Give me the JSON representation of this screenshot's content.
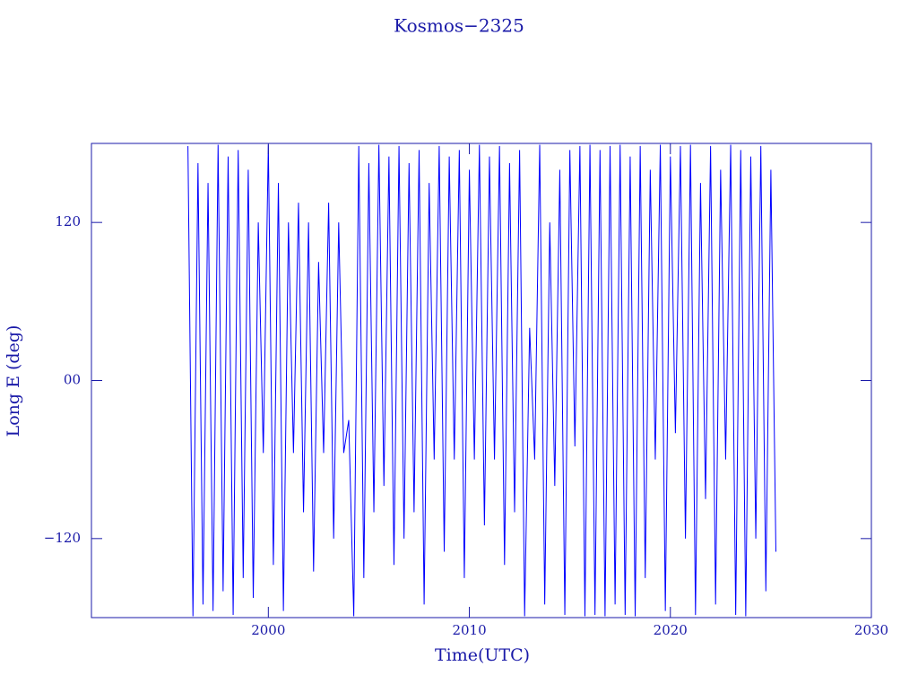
{
  "chart_data": {
    "type": "line",
    "title": "Kosmos−2325",
    "x_label": "Time(UTC)",
    "y_label": "Long E (deg)",
    "xlim": [
      1991.2,
      2030
    ],
    "ylim": [
      -180,
      180
    ],
    "xticks": [
      2000,
      2010,
      2020,
      2030
    ],
    "yticks": [
      {
        "value": -120,
        "label": "−120"
      },
      {
        "value": 0,
        "label": "00"
      },
      120
    ],
    "color": "#0000ff",
    "x": [
      1996,
      1996.25,
      1996.5,
      1996.75,
      1997,
      1997.25,
      1997.5,
      1997.75,
      1998,
      1998.25,
      1998.5,
      1998.75,
      1999,
      1999.25,
      1999.5,
      1999.75,
      2000,
      2000.25,
      2000.5,
      2000.75,
      2001,
      2001.25,
      2001.5,
      2001.75,
      2002,
      2002.25,
      2002.5,
      2002.75,
      2003,
      2003.25,
      2003.5,
      2003.75,
      2004,
      2004.25,
      2004.5,
      2004.75,
      2005,
      2005.25,
      2005.5,
      2005.75,
      2006,
      2006.25,
      2006.5,
      2006.75,
      2007,
      2007.25,
      2007.5,
      2007.75,
      2008,
      2008.25,
      2008.5,
      2008.75,
      2009,
      2009.25,
      2009.5,
      2009.75,
      2010,
      2010.25,
      2010.5,
      2010.75,
      2011,
      2011.25,
      2011.5,
      2011.75,
      2012,
      2012.25,
      2012.5,
      2012.75,
      2013,
      2013.25,
      2013.5,
      2013.75,
      2014,
      2014.25,
      2014.5,
      2014.75,
      2015,
      2015.25,
      2015.5,
      2015.75,
      2016,
      2016.25,
      2016.5,
      2016.75,
      2017,
      2017.25,
      2017.5,
      2017.75,
      2018,
      2018.25,
      2018.5,
      2018.75,
      2019,
      2019.25,
      2019.5,
      2019.75,
      2020,
      2020.25,
      2020.5,
      2020.75,
      2021,
      2021.25,
      2021.5,
      2021.75,
      2022,
      2022.25,
      2022.5,
      2022.75,
      2023,
      2023.25,
      2023.5,
      2023.75,
      2024,
      2024.25,
      2024.5,
      2024.75,
      2025,
      2025.25
    ],
    "values": [
      178,
      -179,
      165,
      -170,
      150,
      -175,
      179,
      -160,
      170,
      -178,
      175,
      -150,
      160,
      -165,
      120,
      -55,
      179,
      -140,
      150,
      -175,
      120,
      -55,
      135,
      -100,
      120,
      -145,
      90,
      -55,
      135,
      -120,
      120,
      -55,
      -30,
      -179,
      178,
      -150,
      165,
      -100,
      179,
      -80,
      170,
      -140,
      178,
      -120,
      165,
      -100,
      175,
      -170,
      150,
      -60,
      178,
      -130,
      170,
      -60,
      175,
      -150,
      160,
      -60,
      179,
      -110,
      170,
      -60,
      178,
      -140,
      165,
      -100,
      175,
      -179,
      40,
      -60,
      179,
      -170,
      120,
      -80,
      160,
      -178,
      175,
      -50,
      178,
      -179,
      179,
      -178,
      175,
      -179,
      178,
      -170,
      179,
      -178,
      170,
      -179,
      178,
      -150,
      160,
      -60,
      179,
      -175,
      170,
      -40,
      178,
      -120,
      179,
      -178,
      150,
      -90,
      178,
      -170,
      160,
      -60,
      179,
      -178,
      175,
      -179,
      170,
      -120,
      178,
      -160,
      160,
      -130
    ]
  }
}
